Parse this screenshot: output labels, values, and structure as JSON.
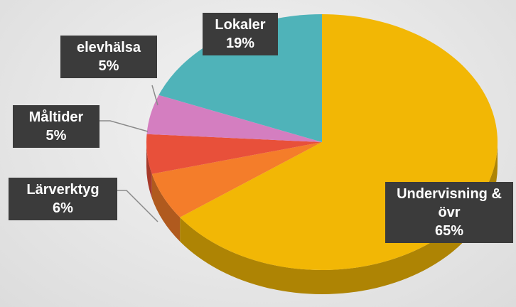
{
  "chart_data": {
    "type": "pie",
    "categories": [
      "Undervisning & övr",
      "Lärverktyg",
      "Måltider",
      "elevhälsa",
      "Lokaler"
    ],
    "values": [
      65,
      6,
      5,
      5,
      19
    ],
    "value_labels": [
      "65%",
      "6%",
      "5%",
      "5%",
      "19%"
    ],
    "colors": [
      "#f2b705",
      "#f47d2a",
      "#e8503a",
      "#d47ec0",
      "#4fb3b9"
    ]
  }
}
